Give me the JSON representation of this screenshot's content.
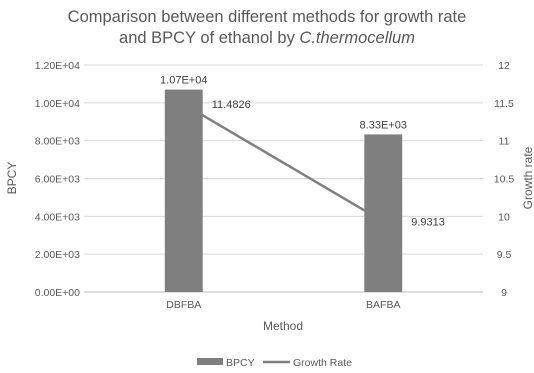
{
  "chart_data": {
    "type": "bar",
    "title_line1": "Comparison between different methods for growth rate",
    "title_line2_prefix": "and BPCY of ethanol by ",
    "title_line2_italic": "C.thermocellum",
    "xlabel": "Method",
    "ylabel_left": "BPCY",
    "ylabel_right": "Growth rate",
    "categories": [
      "DBFBA",
      "BAFBA"
    ],
    "left_axis": {
      "ylim": [
        0,
        12000
      ],
      "ticks": [
        "0.00E+00",
        "2.00E+03",
        "4.00E+03",
        "6.00E+03",
        "8.00E+03",
        "1.00E+04",
        "1.20E+04"
      ]
    },
    "right_axis": {
      "ylim": [
        9,
        12
      ],
      "ticks": [
        "9",
        "9.5",
        "10",
        "10.5",
        "11",
        "11.5",
        "12"
      ]
    },
    "series": [
      {
        "name": "BPCY",
        "kind": "bar",
        "axis": "left",
        "values": [
          10700,
          8330
        ],
        "labels": [
          "1.07E+04",
          "8.33E+03"
        ],
        "color": "#7f7f7f"
      },
      {
        "name": "Growth Rate",
        "kind": "line",
        "axis": "right",
        "values": [
          11.4826,
          9.9313
        ],
        "labels": [
          "11.4826",
          "9.9313"
        ],
        "color": "#808080"
      }
    ],
    "legend": "bottom",
    "grid": true
  }
}
